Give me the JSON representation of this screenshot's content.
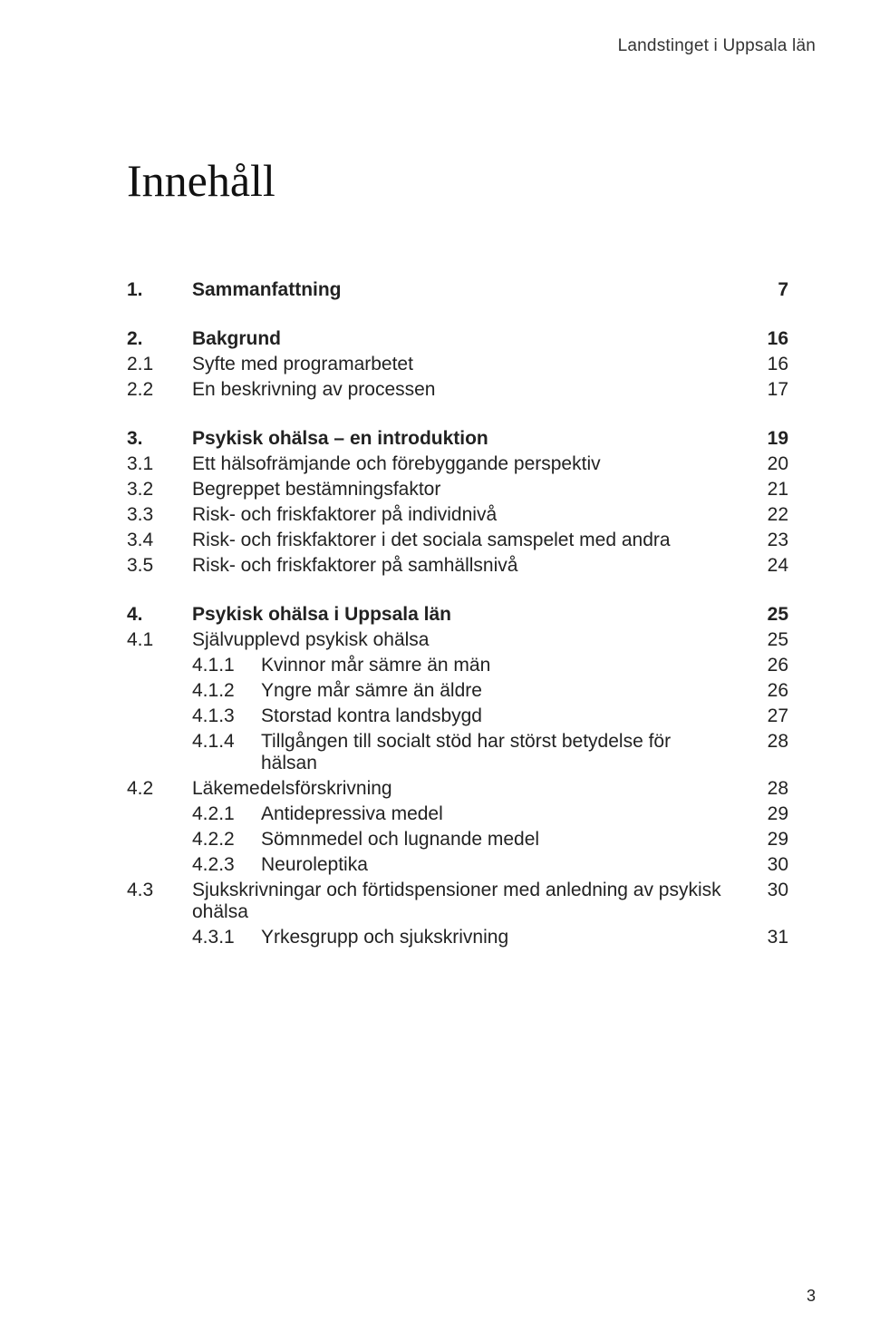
{
  "running_head": "Landstinget i Uppsala län",
  "title": "Innehåll",
  "page_number": "3",
  "toc": [
    {
      "level": 1,
      "num": "1.",
      "label": "Sammanfattning",
      "page": "7",
      "gap_after": true
    },
    {
      "level": 1,
      "num": "2.",
      "label": "Bakgrund",
      "page": "16"
    },
    {
      "level": 2,
      "num": "2.1",
      "label": "Syfte med programarbetet",
      "page": "16"
    },
    {
      "level": 2,
      "num": "2.2",
      "label": "En beskrivning av processen",
      "page": "17",
      "gap_after": true
    },
    {
      "level": 1,
      "num": "3.",
      "label": "Psykisk ohälsa – en introduktion",
      "page": "19"
    },
    {
      "level": 2,
      "num": "3.1",
      "label": "Ett hälsofrämjande och förebyggande perspektiv",
      "page": "20"
    },
    {
      "level": 2,
      "num": "3.2",
      "label": "Begreppet bestämningsfaktor",
      "page": "21"
    },
    {
      "level": 2,
      "num": "3.3",
      "label": "Risk- och friskfaktorer på individnivå",
      "page": "22"
    },
    {
      "level": 2,
      "num": "3.4",
      "label": "Risk- och friskfaktorer i det sociala samspelet med andra",
      "page": "23"
    },
    {
      "level": 2,
      "num": "3.5",
      "label": "Risk- och friskfaktorer på samhällsnivå",
      "page": "24",
      "gap_after": true
    },
    {
      "level": 1,
      "num": "4.",
      "label": "Psykisk ohälsa i Uppsala län",
      "page": "25"
    },
    {
      "level": 2,
      "num": "4.1",
      "label": "Självupplevd psykisk ohälsa",
      "page": "25"
    },
    {
      "level": 3,
      "num": "4.1.1",
      "label": "Kvinnor mår sämre än män",
      "page": "26"
    },
    {
      "level": 3,
      "num": "4.1.2",
      "label": "Yngre mår sämre än äldre",
      "page": "26"
    },
    {
      "level": 3,
      "num": "4.1.3",
      "label": "Storstad kontra landsbygd",
      "page": "27"
    },
    {
      "level": 3,
      "num": "4.1.4",
      "label": "Tillgången till socialt stöd har störst betydelse för hälsan",
      "page": "28"
    },
    {
      "level": 2,
      "num": "4.2",
      "label": "Läkemedelsförskrivning",
      "page": "28"
    },
    {
      "level": 3,
      "num": "4.2.1",
      "label": "Antidepressiva medel",
      "page": "29"
    },
    {
      "level": 3,
      "num": "4.2.2",
      "label": "Sömnmedel och lugnande medel",
      "page": "29"
    },
    {
      "level": 3,
      "num": "4.2.3",
      "label": "Neuroleptika",
      "page": "30"
    },
    {
      "level": 2,
      "num": "4.3",
      "label": "Sjukskrivningar och förtidspensioner med anledning av psykisk ohälsa",
      "page": "30"
    },
    {
      "level": 3,
      "num": "4.3.1",
      "label": "Yrkesgrupp och sjukskrivning",
      "page": "31"
    }
  ]
}
